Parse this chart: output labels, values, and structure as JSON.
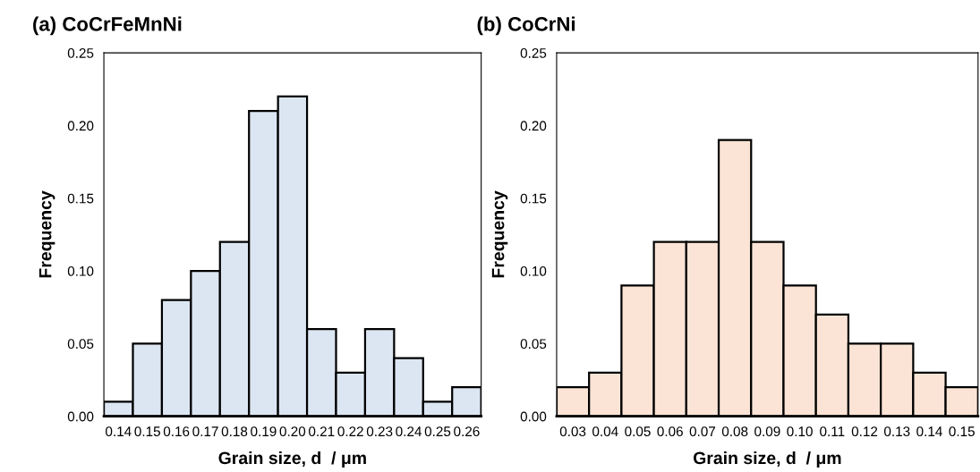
{
  "chart_data": [
    {
      "type": "histogram",
      "title": "(a) CoCrFeMnNi",
      "xlabel": "Grain size, d  / μm",
      "ylabel": "Frequency",
      "color": "#dce6f2",
      "bins": [
        0.135,
        0.145,
        0.155,
        0.165,
        0.175,
        0.185,
        0.195,
        0.205,
        0.215,
        0.225,
        0.235,
        0.245,
        0.255,
        0.265
      ],
      "values": [
        0.01,
        0.05,
        0.08,
        0.1,
        0.12,
        0.21,
        0.22,
        0.06,
        0.03,
        0.06,
        0.04,
        0.01,
        0.02
      ],
      "xlim": [
        0.135,
        0.265
      ],
      "xticks": [
        0.14,
        0.15,
        0.16,
        0.17,
        0.18,
        0.19,
        {
          "value": 0.2,
          "label": "0.20"
        },
        0.21,
        0.22,
        0.23,
        0.24,
        0.25,
        0.26
      ],
      "ylim": [
        0,
        0.25
      ],
      "yticks": [
        {
          "value": 0,
          "label": "0.00"
        },
        0.05,
        {
          "value": 0.1,
          "label": "0.10"
        },
        0.15,
        {
          "value": 0.2,
          "label": "0.20"
        },
        0.25
      ],
      "grid": false
    },
    {
      "type": "histogram",
      "title": "(b) CoCrNi",
      "xlabel": "Grain size, d  / μm",
      "ylabel": "Frequency",
      "color": "#fbe4d6",
      "bins": [
        0.025,
        0.035,
        0.045,
        0.055,
        0.065,
        0.075,
        0.085,
        0.095,
        0.105,
        0.115,
        0.125,
        0.135,
        0.145,
        0.155
      ],
      "values": [
        0.02,
        0.03,
        0.09,
        0.12,
        0.12,
        0.19,
        0.12,
        0.09,
        0.07,
        0.05,
        0.05,
        0.03,
        0.02
      ],
      "xlim": [
        0.025,
        0.155
      ],
      "xticks": [
        0.03,
        0.04,
        0.05,
        0.06,
        0.07,
        0.08,
        0.09,
        {
          "value": 0.1,
          "label": "0.10"
        },
        0.11,
        0.12,
        0.13,
        0.14,
        0.15
      ],
      "ylim": [
        0,
        0.25
      ],
      "yticks": [
        {
          "value": 0,
          "label": "0.00"
        },
        0.05,
        {
          "value": 0.1,
          "label": "0.10"
        },
        0.15,
        {
          "value": 0.2,
          "label": "0.20"
        },
        0.25
      ],
      "grid": false
    }
  ]
}
